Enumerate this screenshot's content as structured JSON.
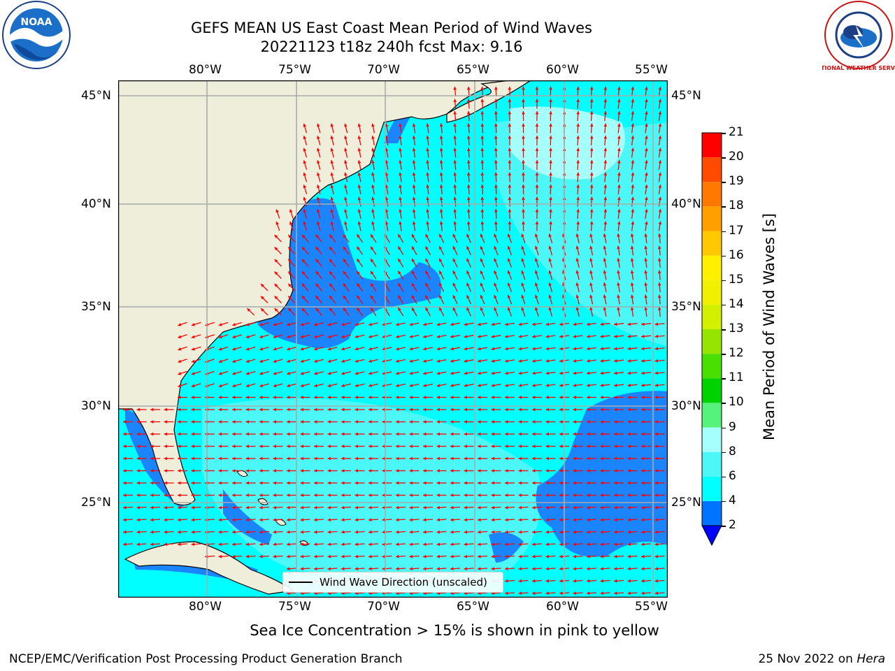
{
  "header": {
    "title_line1": "GEFS MEAN US East Coast Mean Period of Wind Waves",
    "title_line2": "20221123 t18z 240h fcst   Max: 9.16"
  },
  "logos": {
    "left": "NOAA",
    "right": "NATIONAL WEATHER SERVICE"
  },
  "map": {
    "lon_labels": [
      "80°W",
      "75°W",
      "70°W",
      "65°W",
      "60°W",
      "55°W"
    ],
    "lat_labels": [
      "45°N",
      "40°N",
      "35°N",
      "30°N",
      "25°N"
    ],
    "legend_label": "Wind Wave Direction (unscaled)",
    "colors": {
      "land": "#efeedb",
      "ocean_main": "#00ffff",
      "ocean_light": "#4cf8f7",
      "ocean_low": "#1a85ff",
      "arrow": "#ff0000",
      "grid": "#aaaaaa"
    }
  },
  "colorbar": {
    "label": "Mean Period of Wind Waves [s]",
    "ticks": [
      "2",
      "4",
      "6",
      "8",
      "9",
      "10",
      "11",
      "12",
      "13",
      "14",
      "15",
      "16",
      "17",
      "18",
      "19",
      "20",
      "21"
    ],
    "colors": [
      "#0073ff",
      "#00ffff",
      "#4cf8f7",
      "#a5fffb",
      "#57f27c",
      "#00d200",
      "#48e000",
      "#94e600",
      "#d2f000",
      "#f0f000",
      "#fff000",
      "#ffc800",
      "#ffa000",
      "#ff7800",
      "#ff4b00",
      "#ff0000"
    ],
    "under_color": "#0000ff"
  },
  "notes": {
    "sea_ice": "Sea Ice Concentration > 15% is shown in pink to yellow",
    "left_footer": "NCEP/EMC/Verification Post Processing Product Generation Branch",
    "right_footer_date": "25 Nov 2022 on ",
    "right_footer_host": "Hera"
  }
}
